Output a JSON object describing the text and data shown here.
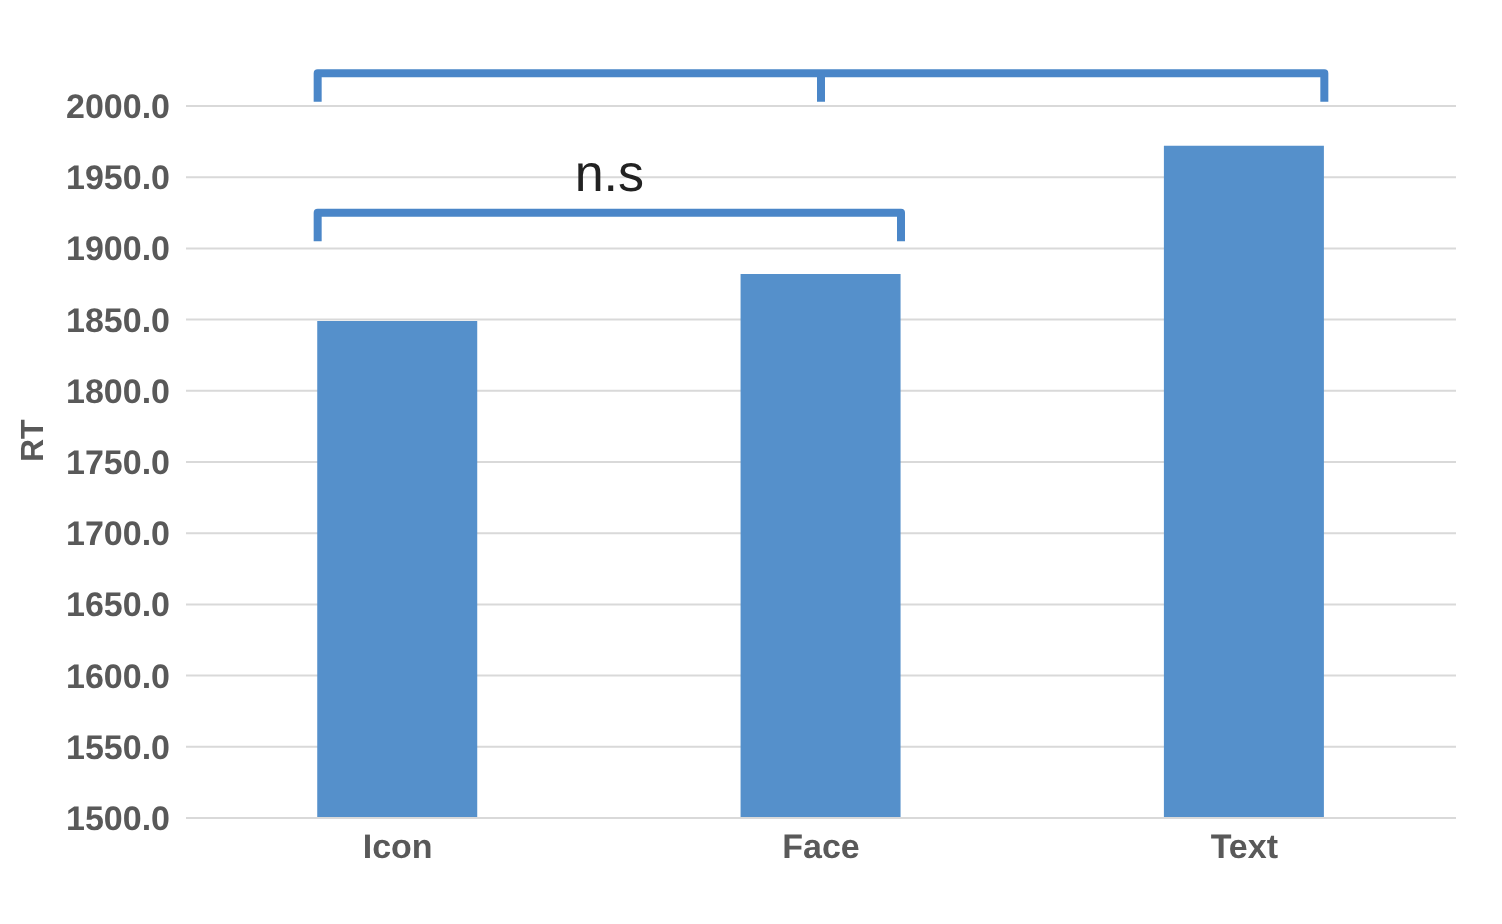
{
  "chart_data": {
    "type": "bar",
    "ylabel": "RT",
    "categories": [
      "Icon",
      "Face",
      "Text"
    ],
    "values": [
      1849,
      1882,
      1972
    ],
    "color": "#5590cb",
    "ylim": [
      1500,
      2000
    ],
    "yticks": [
      {
        "value": 1500,
        "label": "1500.0"
      },
      {
        "value": 1550,
        "label": "1550.0"
      },
      {
        "value": 1600,
        "label": "1600.0"
      },
      {
        "value": 1650,
        "label": "1650.0"
      },
      {
        "value": 1700,
        "label": "1700.0"
      },
      {
        "value": 1750,
        "label": "1750.0"
      },
      {
        "value": 1800,
        "label": "1800.0"
      },
      {
        "value": 1850,
        "label": "1850.0"
      },
      {
        "value": 1900,
        "label": "1900.0"
      },
      {
        "value": 1950,
        "label": "1950.0"
      },
      {
        "value": 2000,
        "label": "2000.0"
      }
    ],
    "grid": "y",
    "annotations": [
      "n.s"
    ]
  }
}
